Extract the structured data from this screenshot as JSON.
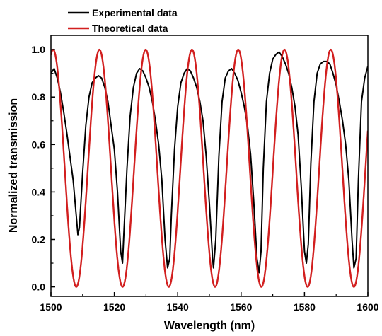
{
  "chart_data": {
    "type": "line",
    "title": "",
    "xlabel": "Wavelength (nm)",
    "ylabel": "Normalized transmission",
    "xlim": [
      1500,
      1600
    ],
    "ylim": [
      -0.04,
      1.06
    ],
    "x_ticks": [
      1500,
      1520,
      1540,
      1560,
      1580,
      1600
    ],
    "x_tick_labels": [
      "1500",
      "1520",
      "1540",
      "1560",
      "1580",
      "1600"
    ],
    "y_ticks": [
      0.0,
      0.2,
      0.4,
      0.6,
      0.8,
      1.0
    ],
    "y_tick_labels": [
      "0.0",
      "0.2",
      "0.4",
      "0.6",
      "0.8",
      "1.0"
    ],
    "grid": false,
    "legend_position": "top-left, above plot",
    "series": [
      {
        "name": "Experimental data",
        "color": "#000000",
        "x": [
          1500,
          1501,
          1502,
          1503,
          1504,
          1505,
          1506,
          1507,
          1508,
          1508.5,
          1509,
          1510,
          1511,
          1512,
          1513,
          1514,
          1515,
          1516,
          1517,
          1518,
          1519,
          1520,
          1521,
          1522,
          1522.6,
          1523,
          1524,
          1525,
          1526,
          1527,
          1528,
          1529,
          1530,
          1531,
          1532,
          1533,
          1534,
          1535,
          1536,
          1536.8,
          1537.5,
          1538,
          1539,
          1540,
          1541,
          1542,
          1543,
          1544,
          1545,
          1546,
          1547,
          1548,
          1549,
          1550,
          1551,
          1551.3,
          1552,
          1553,
          1554,
          1555,
          1556,
          1557,
          1558,
          1559,
          1560,
          1561,
          1562,
          1563,
          1564,
          1565,
          1565.7,
          1566.3,
          1567,
          1568,
          1569,
          1570,
          1571,
          1572,
          1573,
          1574,
          1575,
          1576,
          1577,
          1578,
          1579,
          1580,
          1580.6,
          1581.2,
          1582,
          1583,
          1584,
          1585,
          1586,
          1587,
          1588,
          1589,
          1590,
          1591,
          1592,
          1593,
          1594,
          1595,
          1595.6,
          1596.3,
          1597,
          1598,
          1599,
          1600
        ],
        "y": [
          0.9,
          0.92,
          0.88,
          0.82,
          0.74,
          0.65,
          0.55,
          0.45,
          0.3,
          0.22,
          0.25,
          0.48,
          0.68,
          0.8,
          0.86,
          0.88,
          0.89,
          0.88,
          0.84,
          0.78,
          0.68,
          0.58,
          0.4,
          0.15,
          0.1,
          0.22,
          0.5,
          0.72,
          0.84,
          0.9,
          0.92,
          0.91,
          0.88,
          0.84,
          0.78,
          0.7,
          0.6,
          0.45,
          0.2,
          0.08,
          0.12,
          0.3,
          0.58,
          0.76,
          0.86,
          0.9,
          0.92,
          0.91,
          0.88,
          0.84,
          0.78,
          0.7,
          0.55,
          0.35,
          0.12,
          0.08,
          0.2,
          0.55,
          0.78,
          0.88,
          0.91,
          0.92,
          0.9,
          0.87,
          0.82,
          0.76,
          0.68,
          0.56,
          0.36,
          0.12,
          0.06,
          0.15,
          0.5,
          0.78,
          0.9,
          0.96,
          0.98,
          0.99,
          0.97,
          0.94,
          0.9,
          0.84,
          0.76,
          0.64,
          0.42,
          0.15,
          0.1,
          0.18,
          0.52,
          0.78,
          0.9,
          0.94,
          0.95,
          0.95,
          0.94,
          0.9,
          0.85,
          0.78,
          0.7,
          0.6,
          0.45,
          0.2,
          0.08,
          0.12,
          0.45,
          0.78,
          0.88,
          0.93
        ]
      },
      {
        "name": "Theoretical data",
        "color": "#d21f1f",
        "model": "cos^2 fringes",
        "fsr_nm": 14.6,
        "dip_wavelengths_nm": [
          1508.0,
          1522.6,
          1537.2,
          1551.8,
          1566.4,
          1581.0,
          1595.6
        ],
        "max": 1.0,
        "min": 0.0
      }
    ]
  }
}
